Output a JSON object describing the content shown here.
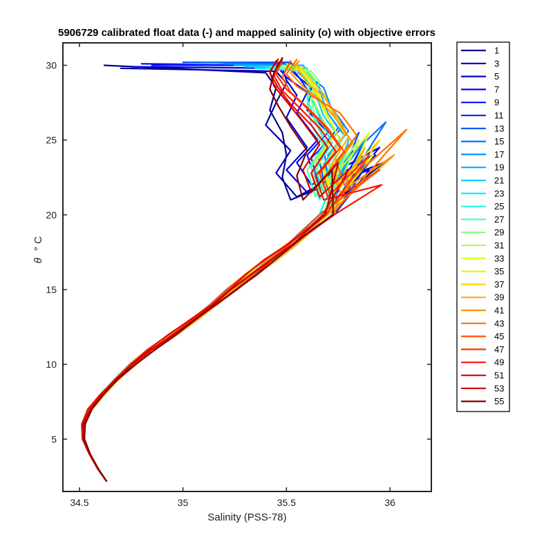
{
  "chart_data": {
    "type": "line",
    "title": "5906729 calibrated float data (-) and mapped salinity (o) with objective errors",
    "xlabel": "Salinity (PSS-78)",
    "ylabel_symbol": "θ",
    "ylabel_unit": "° C",
    "xlim": [
      34.42,
      36.2
    ],
    "ylim": [
      1.5,
      31.5
    ],
    "xticks": [
      {
        "value": 34.5,
        "label": "34.5"
      },
      {
        "value": 35,
        "label": "35"
      },
      {
        "value": 35.5,
        "label": "35.5"
      },
      {
        "value": 36,
        "label": "36"
      }
    ],
    "yticks": [
      {
        "value": 5,
        "label": "5"
      },
      {
        "value": 10,
        "label": "10"
      },
      {
        "value": 15,
        "label": "15"
      },
      {
        "value": 20,
        "label": "20"
      },
      {
        "value": 25,
        "label": "25"
      },
      {
        "value": 30,
        "label": "30"
      }
    ],
    "grid": false,
    "legend_position": "outside-right",
    "legend_entries": [
      "1",
      "3",
      "5",
      "7",
      "9",
      "11",
      "13",
      "15",
      "17",
      "19",
      "21",
      "23",
      "25",
      "27",
      "29",
      "31",
      "33",
      "35",
      "37",
      "39",
      "41",
      "43",
      "45",
      "47",
      "49",
      "51",
      "53",
      "55"
    ],
    "colormap": "jet",
    "base_profile": {
      "theta": [
        2.2,
        3.0,
        4.0,
        5.0,
        6.0,
        7.0,
        8.0,
        9.0,
        10.0,
        11.0,
        12.0,
        13.0,
        14.0,
        15.0,
        16.0,
        17.0,
        18.0,
        19.0,
        20.0
      ],
      "salinity": [
        34.63,
        34.59,
        34.55,
        34.52,
        34.52,
        34.55,
        34.61,
        34.68,
        34.76,
        34.85,
        34.95,
        35.05,
        35.15,
        35.24,
        35.33,
        35.42,
        35.52,
        35.61,
        35.7
      ]
    },
    "series": [
      {
        "name": "1",
        "color": "#00008f",
        "salinity_max": 35.97,
        "theta_max": 23.5,
        "upper": [
          [
            35.52,
            21.0
          ],
          [
            35.48,
            22.5
          ],
          [
            35.5,
            24.0
          ],
          [
            35.48,
            25.5
          ],
          [
            35.42,
            27.0
          ],
          [
            35.45,
            28.5
          ],
          [
            35.4,
            29.5
          ],
          [
            34.62,
            30.0
          ]
        ]
      },
      {
        "name": "3",
        "color": "#0000b0",
        "salinity_max": 35.93,
        "theta_max": 24.0,
        "upper": [
          [
            35.55,
            21.2
          ],
          [
            35.45,
            22.8
          ],
          [
            35.52,
            24.3
          ],
          [
            35.4,
            26.0
          ],
          [
            35.45,
            27.5
          ],
          [
            35.5,
            28.8
          ],
          [
            35.45,
            29.6
          ],
          [
            34.7,
            29.8
          ]
        ]
      },
      {
        "name": "5",
        "color": "#0000d0",
        "salinity_max": 35.9,
        "theta_max": 23.0,
        "upper": [
          [
            35.6,
            21.5
          ],
          [
            35.5,
            23.0
          ],
          [
            35.6,
            24.5
          ],
          [
            35.5,
            26.5
          ],
          [
            35.55,
            28.0
          ],
          [
            35.5,
            29.0
          ],
          [
            35.48,
            29.8
          ],
          [
            34.75,
            29.9
          ]
        ]
      },
      {
        "name": "7",
        "color": "#0000f0",
        "salinity_max": 35.95,
        "theta_max": 24.5,
        "upper": [
          [
            35.62,
            22.0
          ],
          [
            35.55,
            23.5
          ],
          [
            35.65,
            25.0
          ],
          [
            35.55,
            26.8
          ],
          [
            35.6,
            28.2
          ],
          [
            35.5,
            29.2
          ],
          [
            35.45,
            30.0
          ],
          [
            34.8,
            30.1
          ]
        ]
      },
      {
        "name": "9",
        "color": "#0010ff",
        "salinity_max": 35.88,
        "theta_max": 25.0,
        "upper": [
          [
            35.65,
            22.0
          ],
          [
            35.6,
            24.0
          ],
          [
            35.7,
            25.5
          ],
          [
            35.6,
            27.0
          ],
          [
            35.62,
            28.5
          ],
          [
            35.55,
            29.3
          ],
          [
            35.5,
            30.0
          ],
          [
            34.85,
            30.0
          ]
        ]
      },
      {
        "name": "11",
        "color": "#0030ff",
        "salinity_max": 35.92,
        "theta_max": 24.0,
        "upper": [
          [
            35.66,
            21.8
          ],
          [
            35.62,
            23.8
          ],
          [
            35.72,
            25.2
          ],
          [
            35.65,
            27.0
          ],
          [
            35.6,
            28.4
          ],
          [
            35.55,
            29.4
          ],
          [
            35.5,
            30.1
          ],
          [
            34.9,
            30.0
          ]
        ]
      },
      {
        "name": "13",
        "color": "#0050ff",
        "salinity_max": 35.85,
        "theta_max": 25.5,
        "upper": [
          [
            35.68,
            22.3
          ],
          [
            35.65,
            24.2
          ],
          [
            35.75,
            25.8
          ],
          [
            35.68,
            27.2
          ],
          [
            35.62,
            28.6
          ],
          [
            35.56,
            29.5
          ],
          [
            35.52,
            30.2
          ],
          [
            35.0,
            30.2
          ]
        ]
      },
      {
        "name": "15",
        "color": "#0070ff",
        "salinity_max": 35.98,
        "theta_max": 26.2,
        "upper": [
          [
            35.7,
            22.5
          ],
          [
            35.68,
            24.5
          ],
          [
            35.78,
            26.0
          ],
          [
            35.7,
            27.5
          ],
          [
            35.65,
            28.7
          ],
          [
            35.58,
            29.6
          ],
          [
            35.52,
            30.1
          ],
          [
            35.1,
            30.2
          ]
        ]
      },
      {
        "name": "17",
        "color": "#0090ff",
        "salinity_max": 35.88,
        "theta_max": 25.0,
        "upper": [
          [
            35.72,
            22.0
          ],
          [
            35.7,
            24.0
          ],
          [
            35.8,
            25.6
          ],
          [
            35.72,
            27.0
          ],
          [
            35.68,
            28.5
          ],
          [
            35.6,
            29.4
          ],
          [
            35.55,
            30.0
          ],
          [
            35.2,
            30.1
          ]
        ]
      },
      {
        "name": "19",
        "color": "#00b0ff",
        "salinity_max": 35.82,
        "theta_max": 24.5,
        "upper": [
          [
            35.74,
            22.2
          ],
          [
            35.7,
            23.6
          ],
          [
            35.78,
            25.3
          ],
          [
            35.7,
            26.8
          ],
          [
            35.66,
            28.3
          ],
          [
            35.62,
            29.3
          ],
          [
            35.58,
            30.0
          ],
          [
            35.25,
            30.0
          ]
        ]
      },
      {
        "name": "21",
        "color": "#00d0ff",
        "salinity_max": 35.8,
        "theta_max": 25.0,
        "upper": [
          [
            35.72,
            21.8
          ],
          [
            35.68,
            23.4
          ],
          [
            35.76,
            25.1
          ],
          [
            35.68,
            26.6
          ],
          [
            35.64,
            28.1
          ],
          [
            35.62,
            29.1
          ],
          [
            35.6,
            29.8
          ],
          [
            35.3,
            29.9
          ]
        ]
      },
      {
        "name": "23",
        "color": "#00f0f8",
        "salinity_max": 35.78,
        "theta_max": 24.0,
        "upper": [
          [
            35.68,
            21.5
          ],
          [
            35.64,
            23.0
          ],
          [
            35.72,
            24.8
          ],
          [
            35.66,
            26.5
          ],
          [
            35.62,
            28.0
          ],
          [
            35.6,
            29.0
          ],
          [
            35.56,
            29.7
          ],
          [
            35.35,
            29.8
          ]
        ]
      },
      {
        "name": "25",
        "color": "#20ffd8",
        "salinity_max": 35.75,
        "theta_max": 23.5,
        "upper": [
          [
            35.66,
            21.0
          ],
          [
            35.62,
            22.8
          ],
          [
            35.7,
            24.5
          ],
          [
            35.64,
            26.2
          ],
          [
            35.6,
            27.8
          ],
          [
            35.62,
            28.9
          ],
          [
            35.58,
            29.6
          ],
          [
            35.4,
            29.8
          ]
        ]
      },
      {
        "name": "27",
        "color": "#50ffb0",
        "salinity_max": 35.74,
        "theta_max": 24.0,
        "upper": [
          [
            35.64,
            21.2
          ],
          [
            35.6,
            23.0
          ],
          [
            35.68,
            24.6
          ],
          [
            35.62,
            26.0
          ],
          [
            35.6,
            27.6
          ],
          [
            35.64,
            28.8
          ],
          [
            35.6,
            29.5
          ],
          [
            35.42,
            29.9
          ]
        ]
      },
      {
        "name": "29",
        "color": "#80ff80",
        "salinity_max": 35.8,
        "theta_max": 24.5,
        "upper": [
          [
            35.66,
            21.5
          ],
          [
            35.62,
            23.2
          ],
          [
            35.7,
            25.0
          ],
          [
            35.64,
            26.4
          ],
          [
            35.62,
            27.8
          ],
          [
            35.66,
            28.9
          ],
          [
            35.62,
            29.6
          ],
          [
            35.45,
            29.9
          ]
        ]
      },
      {
        "name": "31",
        "color": "#b0ff50",
        "salinity_max": 35.85,
        "theta_max": 25.0,
        "upper": [
          [
            35.68,
            21.8
          ],
          [
            35.64,
            23.5
          ],
          [
            35.72,
            25.2
          ],
          [
            35.66,
            26.8
          ],
          [
            35.62,
            28.0
          ],
          [
            35.64,
            29.0
          ],
          [
            35.6,
            29.7
          ],
          [
            35.48,
            30.0
          ]
        ]
      },
      {
        "name": "33",
        "color": "#d8ff20",
        "salinity_max": 35.9,
        "theta_max": 25.5,
        "upper": [
          [
            35.7,
            22.0
          ],
          [
            35.66,
            23.8
          ],
          [
            35.74,
            25.5
          ],
          [
            35.68,
            27.0
          ],
          [
            35.64,
            28.2
          ],
          [
            35.6,
            29.1
          ],
          [
            35.56,
            29.8
          ],
          [
            35.5,
            30.1
          ]
        ]
      },
      {
        "name": "35",
        "color": "#f8f000",
        "salinity_max": 35.92,
        "theta_max": 24.0,
        "upper": [
          [
            35.72,
            21.5
          ],
          [
            35.68,
            23.2
          ],
          [
            35.76,
            25.0
          ],
          [
            35.7,
            26.6
          ],
          [
            35.66,
            27.9
          ],
          [
            35.62,
            28.9
          ],
          [
            35.58,
            29.6
          ],
          [
            35.52,
            30.0
          ]
        ]
      },
      {
        "name": "37",
        "color": "#ffd000",
        "salinity_max": 35.95,
        "theta_max": 25.0,
        "upper": [
          [
            35.74,
            22.0
          ],
          [
            35.7,
            23.6
          ],
          [
            35.78,
            25.4
          ],
          [
            35.72,
            26.9
          ],
          [
            35.68,
            28.1
          ],
          [
            35.62,
            29.0
          ],
          [
            35.58,
            29.7
          ],
          [
            35.54,
            30.1
          ]
        ]
      },
      {
        "name": "39",
        "color": "#ffb000",
        "salinity_max": 35.88,
        "theta_max": 24.5,
        "upper": [
          [
            35.76,
            21.8
          ],
          [
            35.72,
            23.4
          ],
          [
            35.8,
            25.2
          ],
          [
            35.74,
            26.7
          ],
          [
            35.68,
            27.9
          ],
          [
            35.6,
            28.8
          ],
          [
            35.56,
            29.6
          ],
          [
            35.55,
            30.2
          ]
        ]
      },
      {
        "name": "41",
        "color": "#ff9000",
        "salinity_max": 36.02,
        "theta_max": 24.0,
        "upper": [
          [
            35.76,
            21.5
          ],
          [
            35.72,
            23.0
          ],
          [
            35.82,
            24.8
          ],
          [
            35.74,
            26.4
          ],
          [
            35.66,
            27.7
          ],
          [
            35.58,
            28.6
          ],
          [
            35.52,
            29.5
          ],
          [
            35.56,
            30.3
          ]
        ]
      },
      {
        "name": "43",
        "color": "#ff7000",
        "salinity_max": 36.08,
        "theta_max": 25.7,
        "upper": [
          [
            35.78,
            22.0
          ],
          [
            35.74,
            23.6
          ],
          [
            35.84,
            25.3
          ],
          [
            35.76,
            26.8
          ],
          [
            35.64,
            27.8
          ],
          [
            35.55,
            28.6
          ],
          [
            35.5,
            29.4
          ],
          [
            35.55,
            30.4
          ]
        ]
      },
      {
        "name": "45",
        "color": "#ff5000",
        "salinity_max": 35.95,
        "theta_max": 23.0,
        "upper": [
          [
            35.72,
            21.0
          ],
          [
            35.68,
            22.5
          ],
          [
            35.78,
            24.2
          ],
          [
            35.7,
            25.8
          ],
          [
            35.6,
            27.2
          ],
          [
            35.52,
            28.2
          ],
          [
            35.48,
            29.2
          ],
          [
            35.52,
            30.3
          ]
        ]
      },
      {
        "name": "47",
        "color": "#ff3000",
        "salinity_max": 35.9,
        "theta_max": 24.0,
        "upper": [
          [
            35.7,
            21.2
          ],
          [
            35.66,
            22.8
          ],
          [
            35.76,
            24.5
          ],
          [
            35.68,
            26.0
          ],
          [
            35.58,
            27.4
          ],
          [
            35.5,
            28.4
          ],
          [
            35.45,
            29.4
          ],
          [
            35.48,
            30.4
          ]
        ]
      },
      {
        "name": "49",
        "color": "#ff1000",
        "salinity_max": 35.96,
        "theta_max": 22.0,
        "upper": [
          [
            35.68,
            21.0
          ],
          [
            35.64,
            22.6
          ],
          [
            35.74,
            24.2
          ],
          [
            35.66,
            25.8
          ],
          [
            35.56,
            27.2
          ],
          [
            35.48,
            28.3
          ],
          [
            35.44,
            29.3
          ],
          [
            35.46,
            30.2
          ]
        ]
      },
      {
        "name": "51",
        "color": "#f00000",
        "salinity_max": 35.8,
        "theta_max": 23.0,
        "upper": [
          [
            35.66,
            21.2
          ],
          [
            35.62,
            22.8
          ],
          [
            35.7,
            24.5
          ],
          [
            35.62,
            26.0
          ],
          [
            35.52,
            27.4
          ],
          [
            35.46,
            28.5
          ],
          [
            35.42,
            29.5
          ],
          [
            35.45,
            30.3
          ]
        ]
      },
      {
        "name": "53",
        "color": "#c80000",
        "salinity_max": 35.75,
        "theta_max": 23.5,
        "upper": [
          [
            35.62,
            21.5
          ],
          [
            35.58,
            23.0
          ],
          [
            35.66,
            24.7
          ],
          [
            35.58,
            26.2
          ],
          [
            35.5,
            27.6
          ],
          [
            35.44,
            28.6
          ],
          [
            35.42,
            29.6
          ],
          [
            35.46,
            30.4
          ]
        ]
      },
      {
        "name": "55",
        "color": "#800000",
        "salinity_max": 35.72,
        "theta_max": 23.0,
        "upper": [
          [
            35.58,
            21.0
          ],
          [
            35.55,
            22.6
          ],
          [
            35.6,
            24.3
          ],
          [
            35.52,
            25.9
          ],
          [
            35.46,
            27.3
          ],
          [
            35.42,
            28.4
          ],
          [
            35.44,
            29.5
          ],
          [
            35.48,
            30.5
          ]
        ]
      }
    ]
  }
}
